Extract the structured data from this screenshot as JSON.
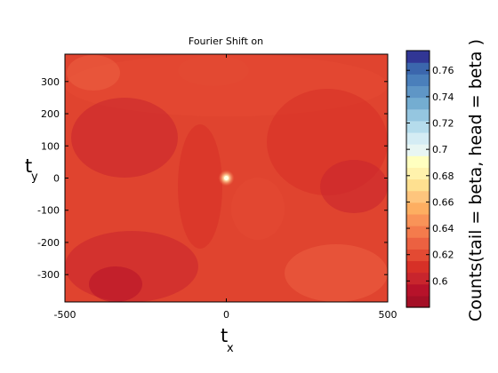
{
  "chart_data": {
    "type": "heatmap",
    "title": "Fourier Shift on",
    "xlabel": {
      "main": "t",
      "subscript": "x"
    },
    "ylabel": {
      "main": "t",
      "subscript": "y"
    },
    "xlim": [
      -500,
      500
    ],
    "ylim": [
      -385,
      385
    ],
    "x_ticks": [
      -500,
      0,
      500
    ],
    "x_tick_labels": [
      "-500",
      "0",
      "500"
    ],
    "y_ticks": [
      300,
      200,
      100,
      0,
      -100,
      -200,
      -300
    ],
    "y_tick_labels": [
      "300",
      "200",
      "100",
      "0",
      "-100",
      "-200",
      "-300"
    ],
    "colorbar": {
      "label": "Counts(tail = beta, head = beta )",
      "range": [
        0.58,
        0.775
      ],
      "ticks": [
        0.76,
        0.74,
        0.72,
        0.7,
        0.68,
        0.66,
        0.64,
        0.62,
        0.6
      ],
      "tick_labels": [
        "0.76",
        "0.74",
        "0.72",
        "0.7",
        "0.68",
        "0.66",
        "0.64",
        "0.62",
        "0.6"
      ],
      "colors": [
        "#a50f26",
        "#b7122a",
        "#c8252d",
        "#d73027",
        "#e34a33",
        "#ec6141",
        "#f47b4c",
        "#f99358",
        "#fdae61",
        "#fec57d",
        "#fee090",
        "#fff2ac",
        "#ffffbf",
        "#e8f6f3",
        "#d4ecf4",
        "#b5dcec",
        "#95c6e0",
        "#74add1",
        "#5f96c6",
        "#4a7fbb",
        "#3b66ad",
        "#313695"
      ]
    },
    "peak": {
      "x": 0,
      "y": 0
    },
    "value_summary": "Counts range about 0.585-0.62 across the map, with a bright peak at the origin"
  }
}
